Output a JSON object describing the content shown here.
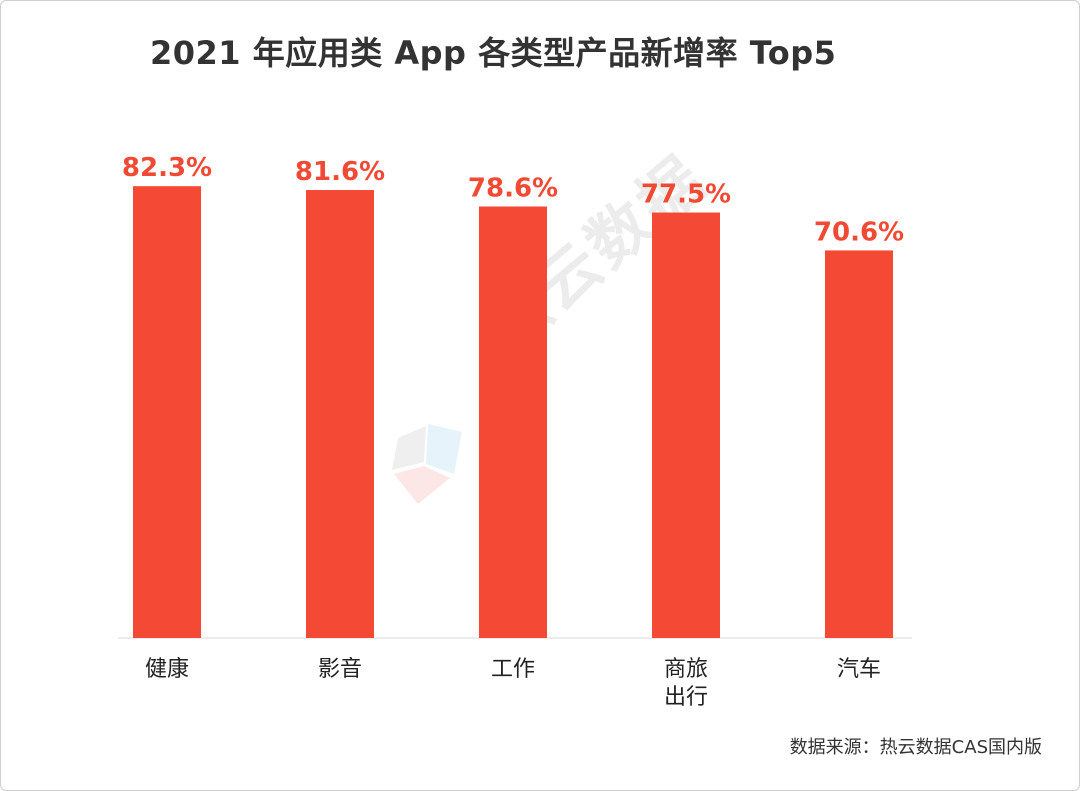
{
  "chart_data": {
    "type": "bar",
    "title": "2021 年应用类 App 各类型产品新增率 Top5",
    "categories": [
      "健康",
      "影音",
      "工作",
      "商旅\n出行",
      "汽车"
    ],
    "values": [
      82.3,
      81.6,
      78.6,
      77.5,
      70.6
    ],
    "value_labels": [
      "82.3%",
      "81.6%",
      "78.6%",
      "77.5%",
      "70.6%"
    ],
    "ylim": [
      0,
      100
    ],
    "xlabel": "",
    "ylabel": "",
    "grid": false,
    "legend": "none",
    "bar_color": "#f44a35"
  },
  "watermark": {
    "text": "热云数据"
  },
  "source": "数据来源：热云数据CAS国内版"
}
